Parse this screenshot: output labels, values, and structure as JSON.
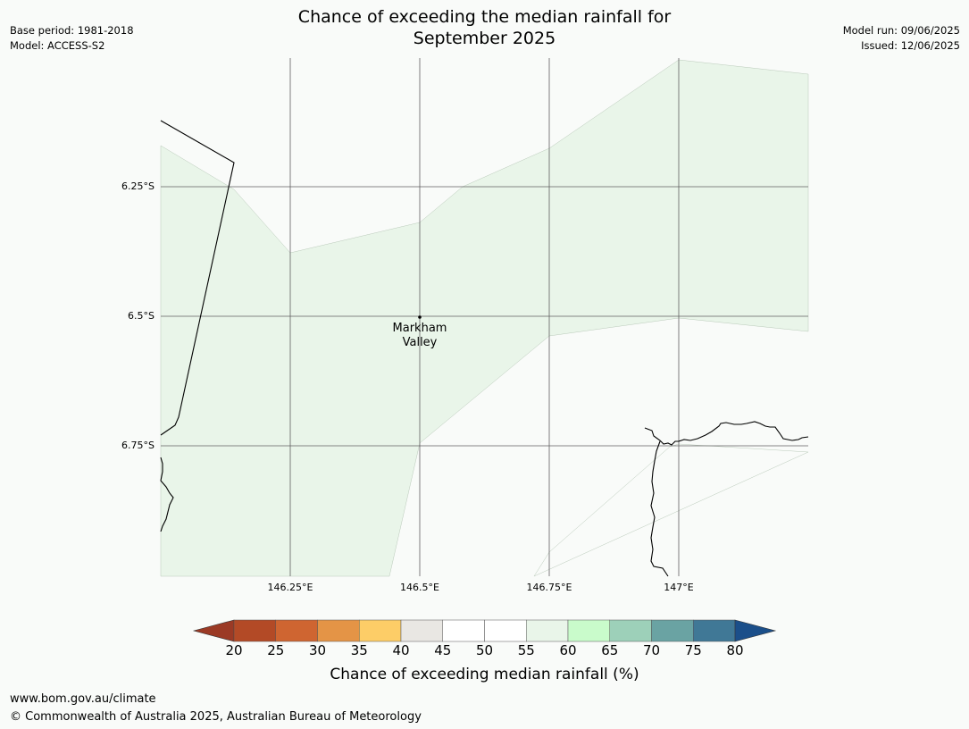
{
  "title": {
    "line1": "Chance of exceeding the median rainfall for",
    "line2": "September 2025"
  },
  "meta": {
    "base_period": "Base period: 1981-2018",
    "model": "Model: ACCESS-S2",
    "model_run": "Model run: 09/06/2025",
    "issued": "Issued: 12/06/2025"
  },
  "map": {
    "lat_labels": [
      "6.25°S",
      "6.5°S",
      "6.75°S"
    ],
    "lon_labels": [
      "146.25°E",
      "146.5°E",
      "146.75°E",
      "147°E"
    ],
    "place": {
      "line1": "Markham",
      "line2": "Valley"
    },
    "shaded_band_category": "55-60",
    "colors": {
      "background": "#f9fbf9",
      "band": "#e9f5e9",
      "gridline": "#5f5f5f",
      "coast": "#000000"
    }
  },
  "colorbar": {
    "title": "Chance of exceeding median rainfall (%)",
    "ticks": [
      "20",
      "25",
      "30",
      "35",
      "40",
      "45",
      "50",
      "55",
      "60",
      "65",
      "70",
      "75",
      "80"
    ],
    "under_color": "#9b3a25",
    "over_color": "#1b4f8a",
    "colors": [
      "#b34a26",
      "#cf6531",
      "#e49446",
      "#fdcd67",
      "#e9e7e3",
      "#ffffff",
      "#ffffff",
      "#e9f5e9",
      "#c9fbcb",
      "#9dd0b9",
      "#6aa3a3",
      "#407896"
    ]
  },
  "footer": {
    "url": "www.bom.gov.au/climate",
    "copyright": "© Commonwealth of Australia 2025, Australian Bureau of Meteorology"
  }
}
